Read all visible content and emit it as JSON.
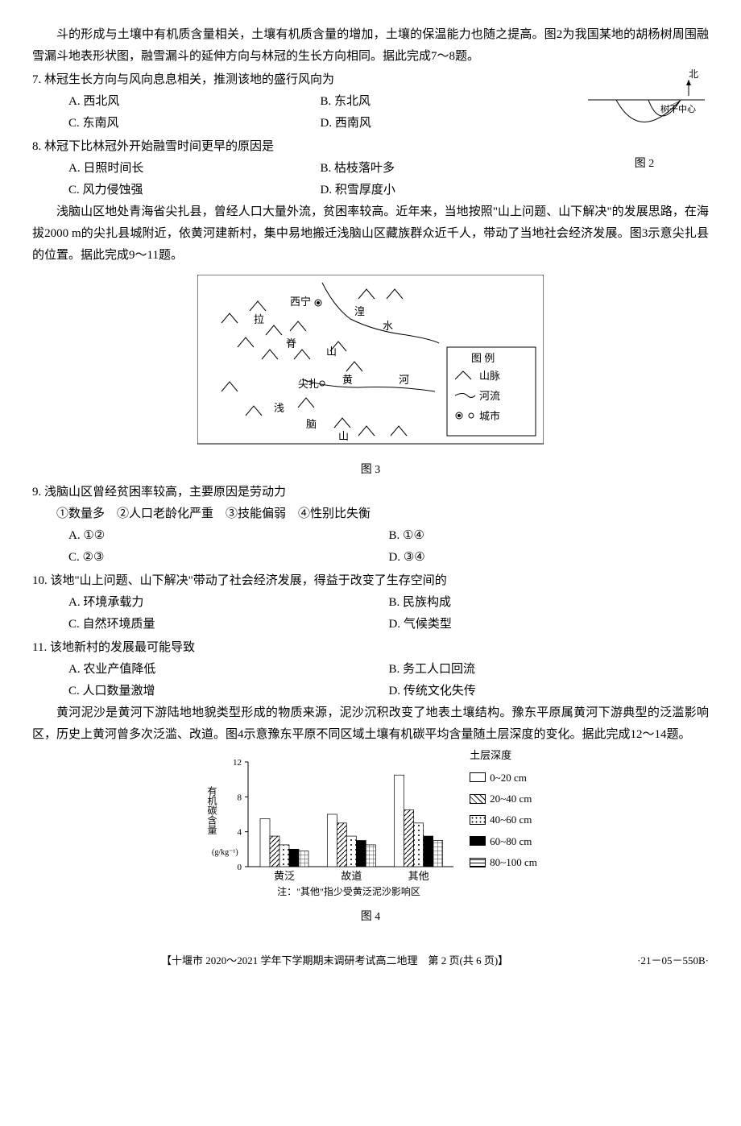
{
  "intro1": "斗的形成与土壤中有机质含量相关，土壤有机质含量的增加，土壤的保温能力也随之提高。图2为我国某地的胡杨树周围融雪漏斗地表形状图，融雪漏斗的延伸方向与林冠的生长方向相同。据此完成7～8题。",
  "q7": {
    "stem": "7. 林冠生长方向与风向息息相关，推测该地的盛行风向为",
    "A": "A. 西北风",
    "B": "B. 东北风",
    "C": "C. 东南风",
    "D": "D. 西南风"
  },
  "q8": {
    "stem": "8. 林冠下比林冠外开始融雪时间更早的原因是",
    "A": "A. 日照时间长",
    "B": "B. 枯枝落叶多",
    "C": "C. 风力侵蚀强",
    "D": "D. 积雪厚度小"
  },
  "fig2": {
    "north": "北",
    "label": "树干中心",
    "caption": "图 2"
  },
  "intro2": "浅脑山区地处青海省尖扎县，曾经人口大量外流，贫困率较高。近年来，当地按照\"山上问题、山下解决\"的发展思路，在海拔2000 m的尖扎县城附近，依黄河建新村，集中易地搬迁浅脑山区藏族群众近千人，带动了当地社会经济发展。图3示意尖扎县的位置。据此完成9～11题。",
  "fig3": {
    "caption": "图 3",
    "xining": "西宁",
    "laji": "拉",
    "ji_shan": "脊",
    "shan": "山",
    "huang": "湟",
    "shui": "水",
    "jianzha": "尖扎",
    "huanghe": "黄",
    "he": "河",
    "qian": "浅",
    "nao": "脑",
    "shan2": "山",
    "legend_title": "图 例",
    "legend_mountain": "山脉",
    "legend_river": "河流",
    "legend_city": "城市"
  },
  "q9": {
    "stem": "9. 浅脑山区曾经贫困率较高，主要原因是劳动力",
    "subs": "①数量多　②人口老龄化严重　③技能偏弱　④性别比失衡",
    "A": "A. ①②",
    "B": "B. ①④",
    "C": "C. ②③",
    "D": "D. ③④"
  },
  "q10": {
    "stem": "10. 该地\"山上问题、山下解决\"带动了社会经济发展，得益于改变了生存空间的",
    "A": "A. 环境承载力",
    "B": "B. 民族构成",
    "C": "C. 自然环境质量",
    "D": "D. 气候类型"
  },
  "q11": {
    "stem": "11. 该地新村的发展最可能导致",
    "A": "A. 农业产值降低",
    "B": "B. 务工人口回流",
    "C": "C. 人口数量激增",
    "D": "D. 传统文化失传"
  },
  "intro3": "黄河泥沙是黄河下游陆地地貌类型形成的物质来源，泥沙沉积改变了地表土壤结构。豫东平原属黄河下游典型的泛滥影响区，历史上黄河曾多次泛滥、改道。图4示意豫东平原不同区域土壤有机碳平均含量随土层深度的变化。据此完成12～14题。",
  "fig4": {
    "caption": "图 4",
    "ylabel": "有机碳含量(g/kg⁻¹)",
    "ymax": 12,
    "yticks": [
      0,
      4,
      8,
      12
    ],
    "categories": [
      "黄泛",
      "故道",
      "其他"
    ],
    "note": "注：\"其他\"指少受黄泛泥沙影响区",
    "legend_title": "土层深度",
    "depths": [
      "0~20 cm",
      "20~40 cm",
      "40~60 cm",
      "60~80 cm",
      "80~100 cm"
    ],
    "data": {
      "黄泛": [
        5.5,
        3.5,
        2.5,
        2.0,
        1.8
      ],
      "故道": [
        6.0,
        5.0,
        3.5,
        3.0,
        2.5
      ],
      "其他": [
        10.5,
        6.5,
        5.0,
        3.5,
        3.0
      ]
    },
    "patterns": [
      "white",
      "diag",
      "dots",
      "black",
      "grid"
    ]
  },
  "footer": {
    "center": "【十堰市 2020～2021 学年下学期期末调研考试高二地理　第 2 页(共 6 页)】",
    "right": "·21－05－550B·"
  }
}
